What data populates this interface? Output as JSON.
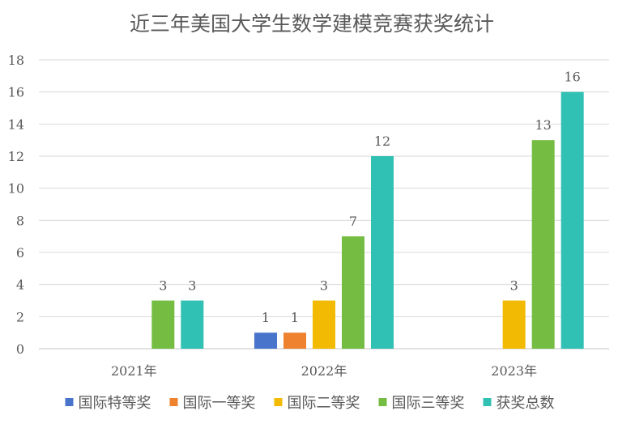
{
  "chart_data": {
    "type": "bar",
    "title": "近三年美国大学生数学建模竞赛获奖统计",
    "categories": [
      "2021年",
      "2022年",
      "2023年"
    ],
    "series": [
      {
        "name": "国际特等奖",
        "values": [
          0,
          1,
          0
        ],
        "color": "#4874CB"
      },
      {
        "name": "国际一等奖",
        "values": [
          0,
          1,
          0
        ],
        "color": "#EE822F"
      },
      {
        "name": "国际二等奖",
        "values": [
          0,
          3,
          3
        ],
        "color": "#F2BA02"
      },
      {
        "name": "国际三等奖",
        "values": [
          3,
          7,
          13
        ],
        "color": "#75BD42"
      },
      {
        "name": "获奖总数",
        "values": [
          3,
          12,
          16
        ],
        "color": "#30C0B4"
      }
    ],
    "ylim": [
      0,
      18
    ],
    "ytick_step": 2,
    "grid": true,
    "legend": "bottom",
    "data_labels": true
  }
}
